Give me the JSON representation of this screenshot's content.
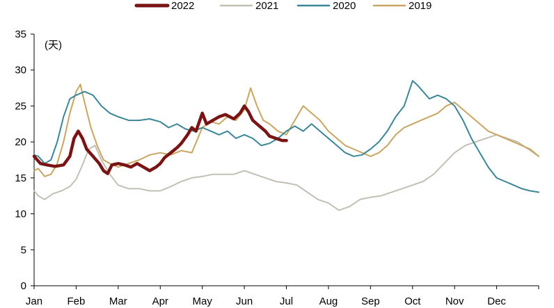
{
  "chart_data": {
    "type": "line",
    "unit_label": "(天)",
    "ylim": [
      0,
      35
    ],
    "yticks": [
      0,
      5,
      10,
      15,
      20,
      25,
      30,
      35
    ],
    "x_unit": "month",
    "xlim": [
      0,
      12
    ],
    "months": [
      "Jan",
      "Feb",
      "Mar",
      "Apr",
      "May",
      "Jun",
      "Jul",
      "Aug",
      "Sep",
      "Oct",
      "Nov",
      "Dec"
    ],
    "legend": [
      "2022",
      "2021",
      "2020",
      "2019"
    ],
    "series": [
      {
        "name": "2022",
        "color": "#7a1313",
        "width": 4.5,
        "x": [
          0.0,
          0.15,
          0.3,
          0.5,
          0.7,
          0.85,
          0.95,
          1.05,
          1.15,
          1.25,
          1.4,
          1.55,
          1.65,
          1.75,
          1.85,
          2.0,
          2.15,
          2.3,
          2.45,
          2.6,
          2.75,
          2.9,
          3.0,
          3.1,
          3.25,
          3.4,
          3.5,
          3.65,
          3.75,
          3.85,
          4.0,
          4.1,
          4.25,
          4.4,
          4.55,
          4.75,
          4.9,
          5.0,
          5.1,
          5.2,
          5.3,
          5.4,
          5.5,
          5.6,
          5.75,
          5.9,
          6.0
        ],
        "values": [
          18.0,
          17.0,
          16.8,
          16.6,
          16.8,
          18.0,
          20.5,
          21.5,
          20.5,
          19.0,
          18.0,
          17.0,
          16.0,
          15.6,
          16.8,
          17.0,
          16.8,
          16.5,
          17.0,
          16.5,
          16.0,
          16.5,
          17.0,
          17.8,
          18.5,
          19.2,
          19.8,
          21.0,
          22.0,
          21.5,
          24.0,
          22.5,
          23.0,
          23.5,
          23.8,
          23.2,
          24.0,
          25.0,
          24.2,
          23.0,
          22.5,
          22.0,
          21.5,
          20.8,
          20.5,
          20.2,
          20.2
        ]
      },
      {
        "name": "2021",
        "color": "#c2c0b5",
        "width": 2,
        "x": [
          0.0,
          0.1,
          0.25,
          0.45,
          0.65,
          0.85,
          1.0,
          1.15,
          1.3,
          1.45,
          1.6,
          1.8,
          2.0,
          2.25,
          2.5,
          2.75,
          3.0,
          3.25,
          3.5,
          3.75,
          4.0,
          4.25,
          4.5,
          4.75,
          5.0,
          5.25,
          5.5,
          5.75,
          6.0,
          6.25,
          6.5,
          6.75,
          7.0,
          7.25,
          7.5,
          7.75,
          8.0,
          8.25,
          8.5,
          8.75,
          9.0,
          9.25,
          9.5,
          9.75,
          10.0,
          10.25,
          10.5,
          10.75,
          11.0,
          11.25,
          11.5,
          11.75,
          12.0
        ],
        "values": [
          13.2,
          12.5,
          12.0,
          12.8,
          13.2,
          13.8,
          14.8,
          16.8,
          19.0,
          19.5,
          17.5,
          15.5,
          14.0,
          13.5,
          13.5,
          13.2,
          13.2,
          13.8,
          14.5,
          15.0,
          15.2,
          15.5,
          15.5,
          15.5,
          16.0,
          15.5,
          15.0,
          14.5,
          14.3,
          14.0,
          13.0,
          12.0,
          11.5,
          10.5,
          11.0,
          12.0,
          12.3,
          12.5,
          13.0,
          13.5,
          14.0,
          14.5,
          15.5,
          17.0,
          18.5,
          19.5,
          20.0,
          20.5,
          21.0,
          20.5,
          20.0,
          19.0,
          18.0
        ]
      },
      {
        "name": "2020",
        "color": "#3a8696",
        "width": 2,
        "x": [
          0.0,
          0.1,
          0.25,
          0.4,
          0.55,
          0.7,
          0.85,
          1.0,
          1.2,
          1.4,
          1.6,
          1.8,
          2.0,
          2.25,
          2.5,
          2.75,
          3.0,
          3.2,
          3.4,
          3.6,
          3.8,
          4.0,
          4.2,
          4.4,
          4.6,
          4.8,
          5.0,
          5.2,
          5.4,
          5.6,
          5.8,
          6.0,
          6.2,
          6.4,
          6.6,
          6.8,
          7.0,
          7.2,
          7.4,
          7.6,
          7.8,
          8.0,
          8.2,
          8.4,
          8.6,
          8.8,
          9.0,
          9.1,
          9.25,
          9.4,
          9.6,
          9.8,
          10.0,
          10.2,
          10.4,
          10.6,
          10.8,
          11.0,
          11.2,
          11.4,
          11.6,
          11.8,
          12.0
        ],
        "values": [
          18.2,
          18.0,
          17.0,
          17.5,
          20.0,
          23.5,
          26.0,
          26.5,
          27.0,
          26.5,
          25.0,
          24.0,
          23.5,
          23.0,
          23.0,
          23.2,
          22.8,
          22.0,
          22.5,
          21.8,
          21.5,
          22.0,
          21.5,
          21.0,
          21.5,
          20.5,
          21.0,
          20.5,
          19.5,
          19.8,
          20.5,
          21.5,
          22.2,
          21.5,
          22.5,
          21.5,
          20.5,
          19.5,
          18.5,
          18.0,
          18.2,
          19.0,
          20.0,
          21.5,
          23.5,
          25.0,
          28.5,
          28.0,
          27.0,
          26.0,
          26.5,
          26.0,
          25.0,
          23.0,
          20.5,
          18.5,
          16.5,
          15.0,
          14.5,
          14.0,
          13.5,
          13.2,
          13.0
        ]
      },
      {
        "name": "2019",
        "color": "#c8a562",
        "width": 2,
        "x": [
          0.0,
          0.1,
          0.25,
          0.4,
          0.55,
          0.7,
          0.85,
          1.0,
          1.1,
          1.2,
          1.35,
          1.5,
          1.65,
          1.8,
          2.0,
          2.25,
          2.5,
          2.75,
          3.0,
          3.25,
          3.5,
          3.75,
          4.0,
          4.2,
          4.4,
          4.6,
          4.8,
          5.0,
          5.15,
          5.3,
          5.45,
          5.6,
          5.8,
          6.0,
          6.2,
          6.4,
          6.6,
          6.8,
          7.0,
          7.2,
          7.4,
          7.6,
          7.8,
          8.0,
          8.2,
          8.4,
          8.6,
          8.8,
          9.0,
          9.2,
          9.4,
          9.6,
          9.8,
          10.0,
          10.2,
          10.4,
          10.6,
          10.8,
          11.0,
          11.2,
          11.4,
          11.6,
          11.8,
          12.0
        ],
        "values": [
          16.0,
          16.3,
          15.2,
          15.5,
          17.0,
          20.0,
          24.0,
          27.0,
          28.0,
          25.5,
          22.0,
          19.5,
          17.5,
          17.0,
          16.5,
          17.0,
          17.5,
          18.2,
          18.5,
          18.2,
          18.8,
          18.5,
          22.0,
          22.8,
          22.5,
          23.5,
          23.0,
          24.5,
          27.5,
          25.0,
          23.0,
          22.5,
          21.5,
          21.0,
          23.0,
          25.0,
          24.0,
          23.0,
          21.5,
          20.5,
          19.5,
          19.0,
          18.5,
          18.0,
          18.5,
          19.5,
          21.0,
          22.0,
          22.5,
          23.0,
          23.5,
          24.0,
          25.0,
          25.5,
          24.5,
          23.5,
          22.5,
          21.5,
          21.0,
          20.5,
          20.0,
          19.5,
          19.0,
          18.0
        ]
      }
    ]
  }
}
